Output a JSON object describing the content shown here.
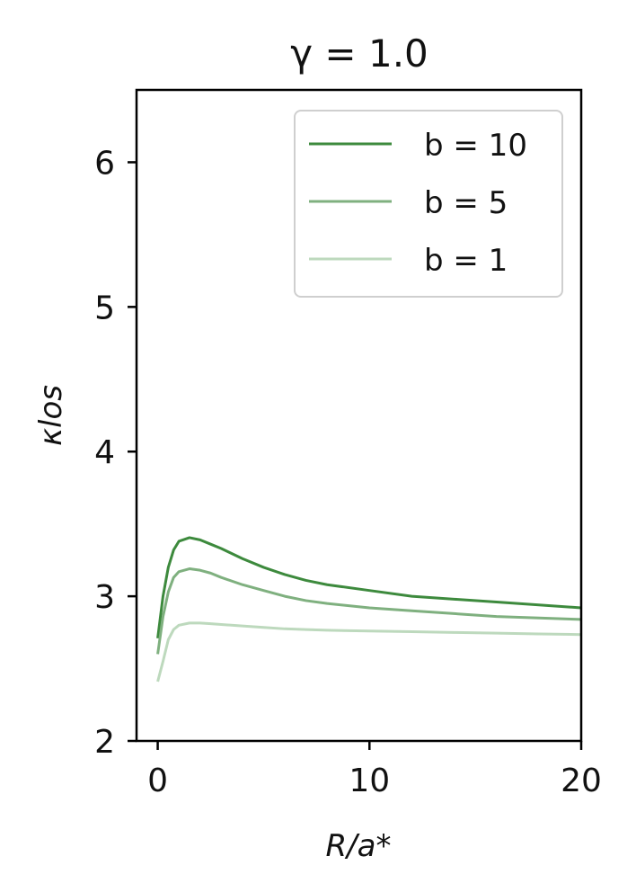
{
  "chart_data": {
    "type": "line",
    "title": "γ = 1.0",
    "xlabel": "R/a*",
    "ylabel": "κlos",
    "xlim": [
      -1,
      20
    ],
    "ylim": [
      2,
      6.5
    ],
    "xticks": [
      0,
      10,
      20
    ],
    "yticks": [
      2,
      3,
      4,
      5,
      6
    ],
    "grid": false,
    "legend_position": "top-right",
    "series": [
      {
        "name": "b = 10",
        "color": "#3d8a3d",
        "x": [
          0,
          0.25,
          0.5,
          0.75,
          1.0,
          1.5,
          2.0,
          2.5,
          3,
          4,
          5,
          6,
          7,
          8,
          10,
          12,
          14,
          16,
          18,
          20
        ],
        "y": [
          2.71,
          3.0,
          3.2,
          3.32,
          3.38,
          3.405,
          3.39,
          3.36,
          3.33,
          3.26,
          3.2,
          3.15,
          3.11,
          3.08,
          3.04,
          3.0,
          2.98,
          2.96,
          2.94,
          2.92
        ]
      },
      {
        "name": "b = 5",
        "color": "#7fb07f",
        "x": [
          0,
          0.25,
          0.5,
          0.75,
          1.0,
          1.5,
          2.0,
          2.5,
          3,
          4,
          5,
          6,
          7,
          8,
          10,
          12,
          14,
          16,
          18,
          20
        ],
        "y": [
          2.6,
          2.86,
          3.03,
          3.13,
          3.17,
          3.19,
          3.18,
          3.16,
          3.13,
          3.08,
          3.04,
          3.0,
          2.97,
          2.95,
          2.92,
          2.9,
          2.88,
          2.86,
          2.85,
          2.84
        ]
      },
      {
        "name": "b = 1",
        "color": "#bdd9bd",
        "x": [
          0,
          0.25,
          0.5,
          0.75,
          1.0,
          1.5,
          2.0,
          2.5,
          3,
          4,
          5,
          6,
          7,
          8,
          10,
          12,
          14,
          16,
          18,
          20
        ],
        "y": [
          2.41,
          2.55,
          2.7,
          2.77,
          2.8,
          2.815,
          2.815,
          2.81,
          2.805,
          2.795,
          2.785,
          2.775,
          2.77,
          2.765,
          2.76,
          2.755,
          2.75,
          2.745,
          2.74,
          2.735
        ]
      }
    ]
  }
}
